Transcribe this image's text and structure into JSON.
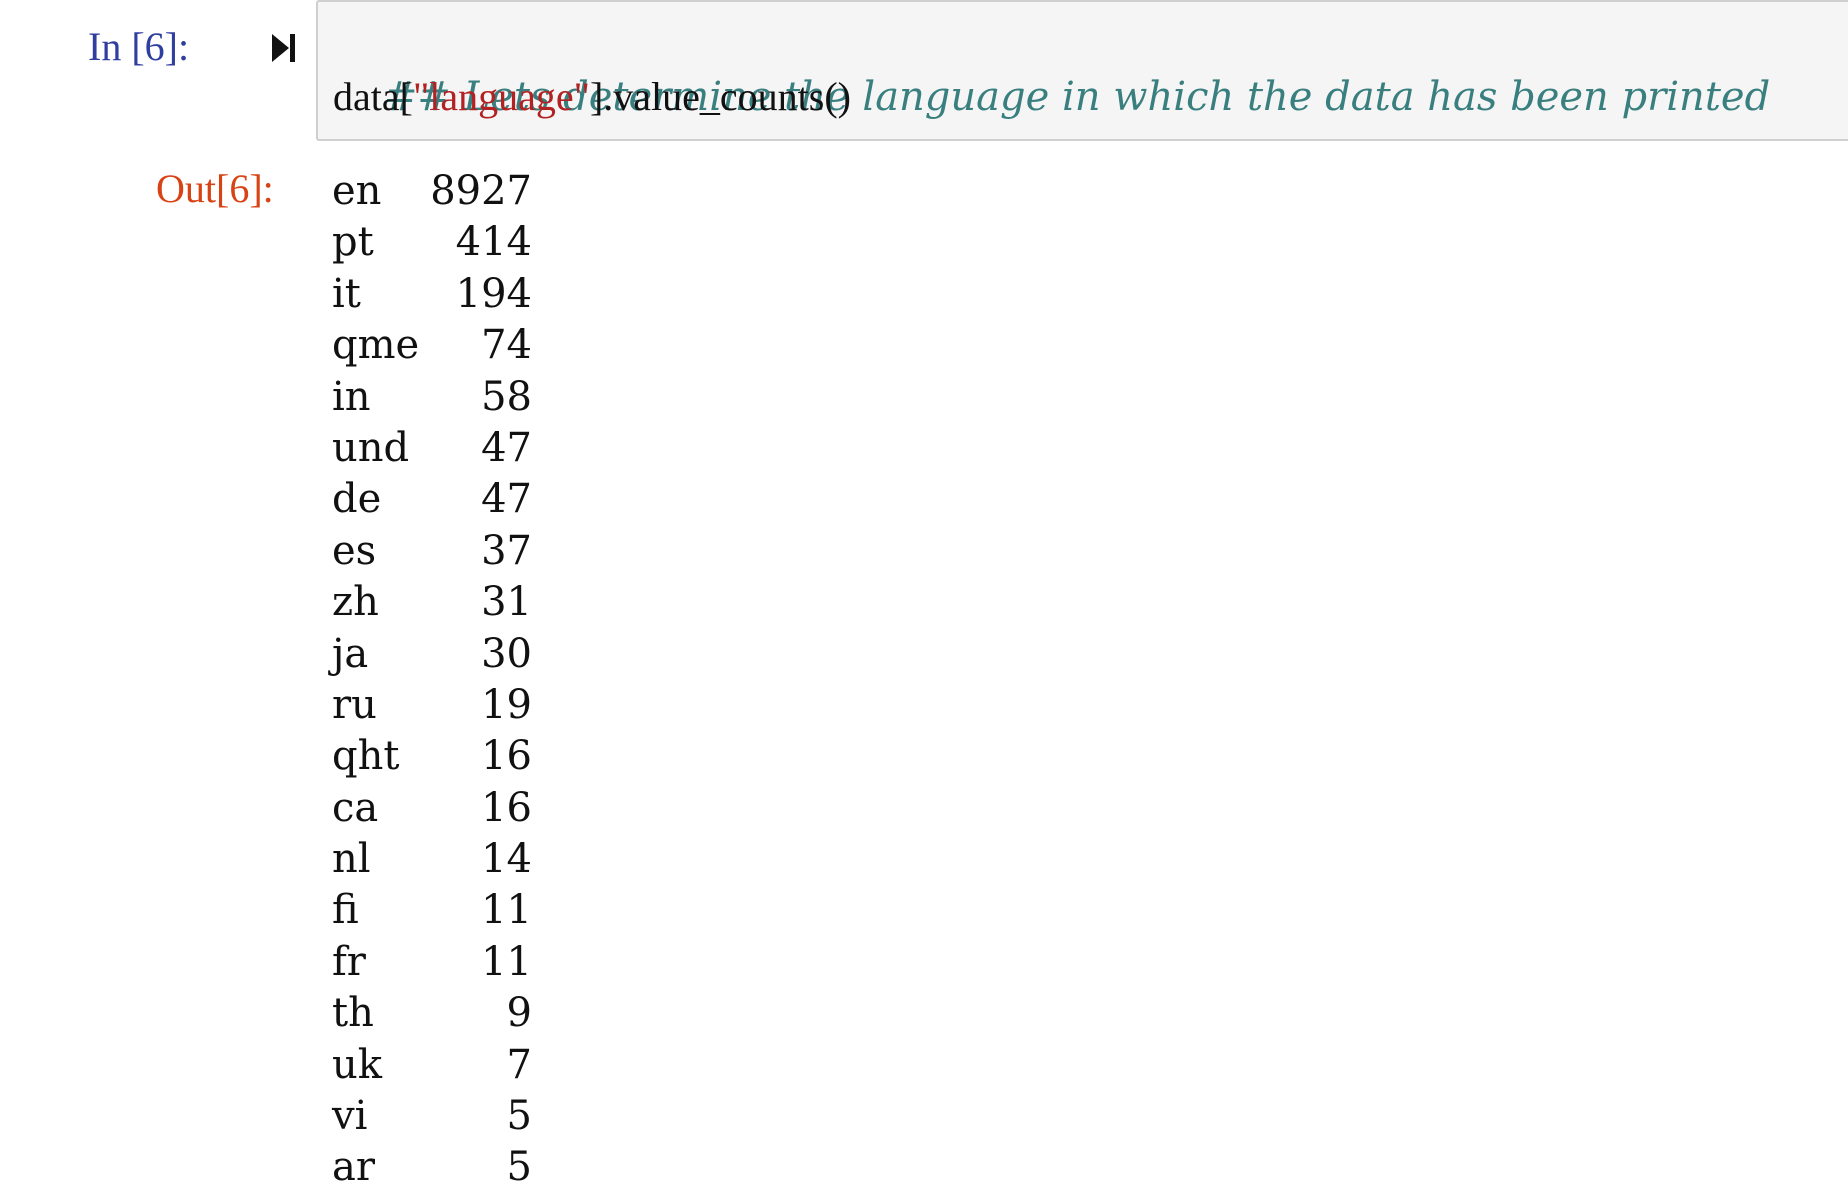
{
  "input_cell": {
    "prompt": "In [6]:",
    "run_icon": "run-cell-icon",
    "comment": "## Lets determine the language in which the data has been printed",
    "code_prefix": "data[",
    "code_string": "\"language\"",
    "code_suffix": "].value_counts()"
  },
  "output_cell": {
    "prompt": "Out[6]:",
    "rows": [
      {
        "lang": "en",
        "count": "8927"
      },
      {
        "lang": "pt",
        "count": "414"
      },
      {
        "lang": "it",
        "count": "194"
      },
      {
        "lang": "qme",
        "count": "74"
      },
      {
        "lang": "in",
        "count": "58"
      },
      {
        "lang": "und",
        "count": "47"
      },
      {
        "lang": "de",
        "count": "47"
      },
      {
        "lang": "es",
        "count": "37"
      },
      {
        "lang": "zh",
        "count": "31"
      },
      {
        "lang": "ja",
        "count": "30"
      },
      {
        "lang": "ru",
        "count": "19"
      },
      {
        "lang": "qht",
        "count": "16"
      },
      {
        "lang": "ca",
        "count": "16"
      },
      {
        "lang": "nl",
        "count": "14"
      },
      {
        "lang": "fi",
        "count": "11"
      },
      {
        "lang": "fr",
        "count": "11"
      },
      {
        "lang": "th",
        "count": "9"
      },
      {
        "lang": "uk",
        "count": "7"
      },
      {
        "lang": "vi",
        "count": "5"
      },
      {
        "lang": "ar",
        "count": "5"
      }
    ]
  },
  "colors": {
    "in_prompt": "#303f9f",
    "out_prompt": "#d84315",
    "comment": "#3a7f7f",
    "string": "#b22222",
    "cell_background": "#f5f5f5",
    "cell_border": "#cfcfcf"
  }
}
